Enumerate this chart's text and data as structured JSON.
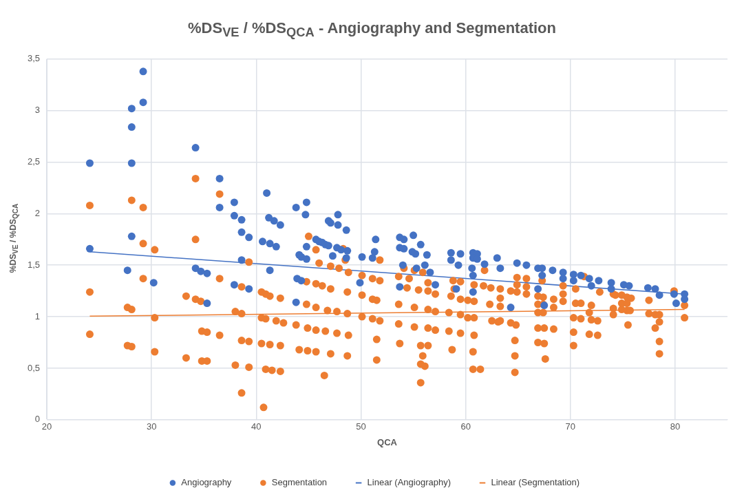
{
  "chart_data": {
    "type": "scatter",
    "title": "%DS$_{VE}$ / %DS$_{QCA}$  - Angiography and Segmentation",
    "xlabel": "QCA",
    "ylabel": "%DS$_{VE}$ / %DS$_{QCA}$",
    "xlim": [
      20,
      85
    ],
    "xticks": [
      20,
      30,
      40,
      50,
      60,
      70,
      80
    ],
    "ylim": [
      0,
      3.5
    ],
    "yticks": [
      0,
      {
        "value": 0.5,
        "label": "0,5"
      },
      1,
      {
        "value": 1.5,
        "label": "1,5"
      },
      2,
      {
        "value": 2.5,
        "label": "2,5"
      },
      3,
      {
        "value": 3.5,
        "label": "3,5"
      }
    ],
    "grid": true,
    "legend": "bottom",
    "marker": "circle",
    "series": [
      {
        "name": "Angiography",
        "type": "scatter",
        "color": "#4472c4",
        "x": [
          24.1,
          24.1,
          27.7,
          28.1,
          28.1,
          28.1,
          28.1,
          29.2,
          29.2,
          30.2,
          34.2,
          34.2,
          34.7,
          35.3,
          35.3,
          36.5,
          36.5,
          37.9,
          37.9,
          37.9,
          38.6,
          38.6,
          38.6,
          39.3,
          39.3,
          40.6,
          41.0,
          41.2,
          41.3,
          41.7,
          42.3,
          41.3,
          41.9,
          43.8,
          44.1,
          44.3,
          44.8,
          44.7,
          44.8,
          44.8,
          43.9,
          44.3,
          43.8,
          45.7,
          46.0,
          46.3,
          46.6,
          46.9,
          47.1,
          46.9,
          47.3,
          47.8,
          47.8,
          47.7,
          48.1,
          48.6,
          48.7,
          48.6,
          50.1,
          51.4,
          51.3,
          51.1,
          49.9,
          53.7,
          54.1,
          55.0,
          53.7,
          54.1,
          55.7,
          54.9,
          55.2,
          56.3,
          56.1,
          54.0,
          55.3,
          56.6,
          57.1,
          53.7,
          58.6,
          59.5,
          58.6,
          59.3,
          59.1,
          60.7,
          61.1,
          60.7,
          61.1,
          60.6,
          60.7,
          60.7,
          63.0,
          61.8,
          63.3,
          64.9,
          65.8,
          66.9,
          67.3,
          67.3,
          68.3,
          69.3,
          69.3,
          70.3,
          70.3,
          71.0,
          71.8,
          72.0,
          72.7,
          73.9,
          73.9,
          75.1,
          75.6,
          77.4,
          78.1,
          78.5,
          79.9,
          80.1,
          80.9,
          80.9,
          64.3,
          66.9,
          67.5
        ],
        "values": [
          2.49,
          1.66,
          1.45,
          2.84,
          3.02,
          2.49,
          1.78,
          3.38,
          3.08,
          1.33,
          2.64,
          1.47,
          1.44,
          1.42,
          1.13,
          2.34,
          2.06,
          2.11,
          1.98,
          1.31,
          1.94,
          1.82,
          1.55,
          1.27,
          1.77,
          1.73,
          2.2,
          1.96,
          1.45,
          1.93,
          1.89,
          1.71,
          1.68,
          2.06,
          1.6,
          1.58,
          2.11,
          1.99,
          1.68,
          1.56,
          1.37,
          1.35,
          1.14,
          1.75,
          1.73,
          1.72,
          1.7,
          1.93,
          1.91,
          1.69,
          1.59,
          1.99,
          1.89,
          1.67,
          1.65,
          1.84,
          1.64,
          1.57,
          1.58,
          1.75,
          1.63,
          1.57,
          1.33,
          1.77,
          1.75,
          1.79,
          1.67,
          1.66,
          1.7,
          1.63,
          1.61,
          1.6,
          1.5,
          1.5,
          1.47,
          1.43,
          1.31,
          1.29,
          1.62,
          1.61,
          1.55,
          1.5,
          1.27,
          1.62,
          1.61,
          1.57,
          1.56,
          1.47,
          1.4,
          1.24,
          1.57,
          1.51,
          1.47,
          1.52,
          1.5,
          1.47,
          1.47,
          1.4,
          1.45,
          1.43,
          1.37,
          1.41,
          1.35,
          1.4,
          1.37,
          1.3,
          1.35,
          1.33,
          1.27,
          1.31,
          1.3,
          1.28,
          1.27,
          1.21,
          1.22,
          1.13,
          1.22,
          1.17,
          1.09,
          1.27,
          1.11
        ]
      },
      {
        "name": "Segmentation",
        "type": "scatter",
        "color": "#ed7d31",
        "x": [
          24.1,
          24.1,
          24.1,
          28.1,
          27.7,
          28.1,
          27.7,
          28.1,
          29.2,
          29.2,
          29.2,
          30.3,
          30.3,
          30.3,
          33.3,
          33.3,
          34.2,
          34.2,
          34.2,
          34.7,
          34.8,
          35.3,
          34.8,
          35.3,
          36.5,
          36.5,
          36.5,
          38.0,
          38.6,
          38.0,
          38.6,
          38.6,
          39.3,
          39.3,
          39.3,
          38.6,
          40.5,
          40.9,
          41.3,
          40.5,
          40.9,
          41.9,
          40.5,
          41.3,
          40.9,
          41.5,
          42.3,
          40.7,
          42.3,
          42.6,
          42.3,
          43.8,
          44.8,
          43.8,
          44.9,
          44.1,
          44.9,
          45.0,
          45.7,
          46.0,
          45.7,
          46.3,
          47.1,
          44.8,
          45.7,
          46.8,
          47.7,
          48.7,
          45.7,
          46.6,
          47.7,
          48.8,
          45.7,
          47.1,
          48.7,
          46.5,
          47.1,
          47.9,
          48.8,
          48.3,
          48.5,
          48.7,
          50.1,
          50.1,
          50.1,
          51.1,
          51.8,
          51.8,
          51.1,
          51.5,
          51.1,
          51.8,
          51.5,
          51.5,
          54.1,
          55.1,
          55.9,
          53.6,
          54.6,
          54.4,
          55.5,
          56.4,
          57.1,
          56.4,
          53.6,
          55.1,
          56.4,
          57.1,
          53.6,
          55.1,
          56.4,
          57.1,
          53.7,
          55.7,
          56.4,
          55.9,
          55.7,
          56.1,
          55.7,
          58.8,
          59.5,
          58.9,
          58.6,
          59.5,
          58.4,
          59.5,
          58.4,
          59.5,
          58.7,
          60.8,
          61.7,
          62.4,
          60.2,
          60.8,
          60.2,
          60.8,
          60.8,
          60.7,
          60.7,
          61.4,
          61.8,
          62.3,
          62.5,
          63.1,
          63.3,
          63.3,
          63.3,
          63.3,
          64.3,
          64.3,
          64.8,
          64.7,
          64.7,
          64.7,
          64.9,
          64.9,
          64.9,
          65.8,
          65.8,
          65.8,
          66.9,
          67.4,
          66.9,
          67.4,
          66.9,
          67.4,
          66.9,
          67.5,
          66.9,
          67.5,
          67.6,
          67.3,
          68.4,
          68.4,
          68.4,
          69.3,
          69.3,
          69.3,
          70.3,
          70.3,
          70.3,
          70.5,
          71.0,
          71.0,
          70.5,
          71.3,
          72.0,
          71.8,
          72.0,
          72.6,
          71.8,
          72.6,
          72.8,
          74.1,
          74.3,
          74.1,
          74.1,
          74.9,
          75.4,
          75.8,
          74.9,
          75.4,
          74.9,
          75.4,
          75.7,
          75.5,
          77.5,
          77.5,
          78.1,
          78.5,
          78.5,
          78.1,
          78.5,
          78.5,
          79.9,
          80.9,
          80.9
        ],
        "values": [
          2.08,
          1.24,
          0.83,
          2.13,
          1.09,
          1.07,
          0.72,
          0.71,
          2.06,
          1.71,
          1.37,
          1.65,
          0.99,
          0.66,
          1.2,
          0.6,
          2.34,
          1.75,
          1.17,
          1.15,
          0.86,
          0.85,
          0.57,
          0.57,
          2.19,
          1.37,
          0.82,
          1.05,
          1.03,
          0.53,
          0.26,
          0.77,
          0.76,
          0.51,
          1.53,
          1.29,
          1.24,
          1.22,
          1.2,
          0.99,
          0.98,
          0.96,
          0.74,
          0.73,
          0.49,
          0.48,
          0.47,
          0.12,
          1.18,
          0.94,
          0.72,
          null,
          1.12,
          0.92,
          0.89,
          0.68,
          0.67,
          1.78,
          1.65,
          1.52,
          1.32,
          1.3,
          1.27,
          1.34,
          1.09,
          1.06,
          1.05,
          1.03,
          0.87,
          0.86,
          0.84,
          0.82,
          0.66,
          0.64,
          0.62,
          0.43,
          1.49,
          1.47,
          1.43,
          1.66,
          1.55,
          1.24,
          1.4,
          1.21,
          1.0,
          1.37,
          1.35,
          1.55,
          1.17,
          1.16,
          0.98,
          0.96,
          0.78,
          0.58,
          1.47,
          1.45,
          1.43,
          1.39,
          1.37,
          1.28,
          1.26,
          1.25,
          1.22,
          1.33,
          1.12,
          1.09,
          1.07,
          1.05,
          0.93,
          0.9,
          0.89,
          0.87,
          0.74,
          0.72,
          0.72,
          0.62,
          0.54,
          0.52,
          0.36,
          1.35,
          1.34,
          1.27,
          1.2,
          1.17,
          1.04,
          1.02,
          0.86,
          0.84,
          0.68,
          1.31,
          1.3,
          1.28,
          1.16,
          1.15,
          0.99,
          0.99,
          0.82,
          0.66,
          0.49,
          0.49,
          1.45,
          1.12,
          0.96,
          0.95,
          1.27,
          1.18,
          1.1,
          0.96,
          1.25,
          0.94,
          0.92,
          0.77,
          0.62,
          0.46,
          1.38,
          1.31,
          1.24,
          1.37,
          1.29,
          1.22,
          1.2,
          1.19,
          1.12,
          1.12,
          1.04,
          1.04,
          0.89,
          0.89,
          0.75,
          0.74,
          0.59,
          1.35,
          1.17,
          1.09,
          0.88,
          1.3,
          1.22,
          1.15,
          0.99,
          0.85,
          0.72,
          1.13,
          1.13,
          0.98,
          1.27,
          1.39,
          1.11,
          1.04,
          0.97,
          0.96,
          0.83,
          0.82,
          1.24,
          1.22,
          1.21,
          1.08,
          1.02,
          1.21,
          1.19,
          1.18,
          1.13,
          1.13,
          1.07,
          1.06,
          1.06,
          0.92,
          1.16,
          1.03,
          1.02,
          1.02,
          0.95,
          0.89,
          0.76,
          0.64,
          1.25,
          1.11,
          0.99
        ]
      },
      {
        "name": "Linear (Angiography)",
        "type": "line",
        "color": "#4472c4",
        "marker": "none",
        "x": [
          24.1,
          80.9
        ],
        "values": [
          1.63,
          1.22
        ]
      },
      {
        "name": "Linear (Segmentation)",
        "type": "line",
        "color": "#ed7d31",
        "marker": "none",
        "x": [
          24.1,
          80.9
        ],
        "values": [
          1.005,
          1.07
        ]
      }
    ]
  }
}
